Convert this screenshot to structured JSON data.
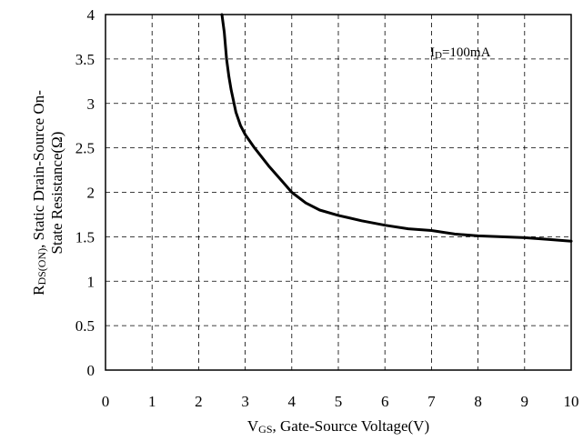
{
  "chart_data": {
    "type": "line",
    "title": "",
    "xlabel": {
      "main": "V",
      "sub": "GS",
      "rest": ", Gate-Source Voltage(V)"
    },
    "ylabel": {
      "line1_main": "R",
      "line1_sub": "DS(ON)",
      "line1_rest": ", Static Drain-Source On-",
      "line2": "State Resistance(Ω)"
    },
    "xlim": [
      0,
      10
    ],
    "ylim": [
      0,
      4
    ],
    "xticks": [
      "0",
      "1",
      "2",
      "3",
      "4",
      "5",
      "6",
      "7",
      "8",
      "9",
      "10"
    ],
    "yticks": [
      "0",
      "0.5",
      "1",
      "1.5",
      "2",
      "2.5",
      "3",
      "3.5",
      "4"
    ],
    "grid": true,
    "grid_style": "dashed",
    "annotation": {
      "main": "I",
      "sub": "D",
      "rest": "=100mA"
    },
    "series": [
      {
        "color": "#000000",
        "x": [
          2.5,
          2.55,
          2.6,
          2.65,
          2.7,
          2.8,
          2.9,
          3.0,
          3.2,
          3.5,
          3.8,
          4.0,
          4.3,
          4.6,
          5.0,
          5.5,
          6.0,
          6.5,
          7.0,
          7.5,
          8.0,
          8.5,
          9.0,
          9.5,
          10.0
        ],
        "y": [
          4.0,
          3.8,
          3.5,
          3.3,
          3.15,
          2.9,
          2.75,
          2.65,
          2.5,
          2.3,
          2.12,
          2.0,
          1.88,
          1.8,
          1.74,
          1.68,
          1.63,
          1.59,
          1.57,
          1.53,
          1.51,
          1.5,
          1.49,
          1.47,
          1.45
        ]
      }
    ]
  }
}
